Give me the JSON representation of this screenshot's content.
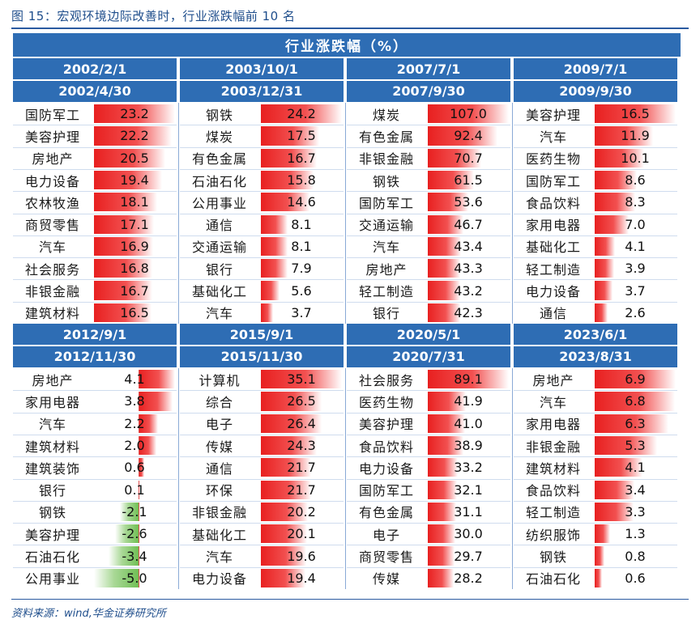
{
  "figure_title": "图 15：宏观环境边际改善时，行业涨跌幅前 10 名",
  "table_header": "行业涨跌幅（%）",
  "source": "资料来源：wind,华金证券研究所",
  "blocks": [
    {
      "periods": [
        {
          "start": "2002/2/1",
          "end": "2002/4/30",
          "rows": [
            {
              "name": "国防军工",
              "value": "23.2",
              "v": 23.2
            },
            {
              "name": "美容护理",
              "value": "22.2",
              "v": 22.2
            },
            {
              "name": "房地产",
              "value": "20.5",
              "v": 20.5
            },
            {
              "name": "电力设备",
              "value": "19.4",
              "v": 19.4
            },
            {
              "name": "农林牧渔",
              "value": "18.1",
              "v": 18.1
            },
            {
              "name": "商贸零售",
              "value": "17.1",
              "v": 17.1
            },
            {
              "name": "汽车",
              "value": "16.9",
              "v": 16.9
            },
            {
              "name": "社会服务",
              "value": "16.8",
              "v": 16.8
            },
            {
              "name": "非银金融",
              "value": "16.7",
              "v": 16.7
            },
            {
              "name": "建筑材料",
              "value": "16.5",
              "v": 16.5
            }
          ]
        },
        {
          "start": "2003/10/1",
          "end": "2003/12/31",
          "rows": [
            {
              "name": "钢铁",
              "value": "24.2",
              "v": 24.2
            },
            {
              "name": "煤炭",
              "value": "17.5",
              "v": 17.5
            },
            {
              "name": "有色金属",
              "value": "16.7",
              "v": 16.7
            },
            {
              "name": "石油石化",
              "value": "15.8",
              "v": 15.8
            },
            {
              "name": "公用事业",
              "value": "14.6",
              "v": 14.6
            },
            {
              "name": "通信",
              "value": "8.1",
              "v": 8.1
            },
            {
              "name": "交通运输",
              "value": "8.1",
              "v": 8.1
            },
            {
              "name": "银行",
              "value": "7.9",
              "v": 7.9
            },
            {
              "name": "基础化工",
              "value": "5.6",
              "v": 5.6
            },
            {
              "name": "汽车",
              "value": "3.7",
              "v": 3.7
            }
          ]
        },
        {
          "start": "2007/7/1",
          "end": "2007/9/30",
          "rows": [
            {
              "name": "煤炭",
              "value": "107.0",
              "v": 107.0
            },
            {
              "name": "有色金属",
              "value": "92.4",
              "v": 92.4
            },
            {
              "name": "非银金融",
              "value": "70.7",
              "v": 70.7
            },
            {
              "name": "钢铁",
              "value": "61.5",
              "v": 61.5
            },
            {
              "name": "国防军工",
              "value": "53.6",
              "v": 53.6
            },
            {
              "name": "交通运输",
              "value": "46.7",
              "v": 46.7
            },
            {
              "name": "汽车",
              "value": "43.4",
              "v": 43.4
            },
            {
              "name": "房地产",
              "value": "43.3",
              "v": 43.3
            },
            {
              "name": "轻工制造",
              "value": "43.2",
              "v": 43.2
            },
            {
              "name": "银行",
              "value": "42.3",
              "v": 42.3
            }
          ]
        },
        {
          "start": "2009/7/1",
          "end": "2009/9/30",
          "rows": [
            {
              "name": "美容护理",
              "value": "16.5",
              "v": 16.5
            },
            {
              "name": "汽车",
              "value": "11.9",
              "v": 11.9
            },
            {
              "name": "医药生物",
              "value": "10.1",
              "v": 10.1
            },
            {
              "name": "国防军工",
              "value": "8.6",
              "v": 8.6
            },
            {
              "name": "食品饮料",
              "value": "8.3",
              "v": 8.3
            },
            {
              "name": "家用电器",
              "value": "7.0",
              "v": 7.0
            },
            {
              "name": "基础化工",
              "value": "4.1",
              "v": 4.1
            },
            {
              "name": "轻工制造",
              "value": "3.9",
              "v": 3.9
            },
            {
              "name": "电力设备",
              "value": "3.7",
              "v": 3.7
            },
            {
              "name": "通信",
              "value": "2.6",
              "v": 2.6
            }
          ]
        }
      ]
    },
    {
      "periods": [
        {
          "start": "2012/9/1",
          "end": "2012/11/30",
          "has_negative": true,
          "rows": [
            {
              "name": "房地产",
              "value": "4.1",
              "v": 4.1
            },
            {
              "name": "家用电器",
              "value": "3.8",
              "v": 3.8
            },
            {
              "name": "汽车",
              "value": "2.2",
              "v": 2.2
            },
            {
              "name": "建筑材料",
              "value": "2.0",
              "v": 2.0
            },
            {
              "name": "建筑装饰",
              "value": "0.6",
              "v": 0.6
            },
            {
              "name": "银行",
              "value": "0.1",
              "v": 0.1
            },
            {
              "name": "钢铁",
              "value": "-2.1",
              "v": -2.1
            },
            {
              "name": "美容护理",
              "value": "-2.6",
              "v": -2.6
            },
            {
              "name": "石油石化",
              "value": "-3.4",
              "v": -3.4
            },
            {
              "name": "公用事业",
              "value": "-5.0",
              "v": -5.0
            }
          ]
        },
        {
          "start": "2015/9/1",
          "end": "2015/11/30",
          "rows": [
            {
              "name": "计算机",
              "value": "35.1",
              "v": 35.1
            },
            {
              "name": "综合",
              "value": "26.5",
              "v": 26.5
            },
            {
              "name": "电子",
              "value": "26.4",
              "v": 26.4
            },
            {
              "name": "传媒",
              "value": "24.3",
              "v": 24.3
            },
            {
              "name": "通信",
              "value": "21.7",
              "v": 21.7
            },
            {
              "name": "环保",
              "value": "21.7",
              "v": 21.7
            },
            {
              "name": "非银金融",
              "value": "20.2",
              "v": 20.2
            },
            {
              "name": "基础化工",
              "value": "20.1",
              "v": 20.1
            },
            {
              "name": "汽车",
              "value": "19.6",
              "v": 19.6
            },
            {
              "name": "电力设备",
              "value": "19.4",
              "v": 19.4
            }
          ]
        },
        {
          "start": "2020/5/1",
          "end": "2020/7/31",
          "rows": [
            {
              "name": "社会服务",
              "value": "89.1",
              "v": 89.1
            },
            {
              "name": "医药生物",
              "value": "41.9",
              "v": 41.9
            },
            {
              "name": "美容护理",
              "value": "41.0",
              "v": 41.0
            },
            {
              "name": "食品饮料",
              "value": "38.9",
              "v": 38.9
            },
            {
              "name": "电力设备",
              "value": "33.2",
              "v": 33.2
            },
            {
              "name": "国防军工",
              "value": "32.1",
              "v": 32.1
            },
            {
              "name": "有色金属",
              "value": "31.1",
              "v": 31.1
            },
            {
              "name": "电子",
              "value": "30.0",
              "v": 30.0
            },
            {
              "name": "商贸零售",
              "value": "29.7",
              "v": 29.7
            },
            {
              "name": "传媒",
              "value": "28.2",
              "v": 28.2
            }
          ]
        },
        {
          "start": "2023/6/1",
          "end": "2023/8/31",
          "rows": [
            {
              "name": "房地产",
              "value": "6.9",
              "v": 6.9
            },
            {
              "name": "汽车",
              "value": "6.8",
              "v": 6.8
            },
            {
              "name": "家用电器",
              "value": "6.3",
              "v": 6.3
            },
            {
              "name": "非银金融",
              "value": "5.3",
              "v": 5.3
            },
            {
              "name": "建筑材料",
              "value": "4.1",
              "v": 4.1
            },
            {
              "name": "食品饮料",
              "value": "3.4",
              "v": 3.4
            },
            {
              "name": "轻工制造",
              "value": "3.3",
              "v": 3.3
            },
            {
              "name": "纺织服饰",
              "value": "1.3",
              "v": 1.3
            },
            {
              "name": "钢铁",
              "value": "0.8",
              "v": 0.8
            },
            {
              "name": "石油石化",
              "value": "0.6",
              "v": 0.6
            }
          ]
        }
      ]
    }
  ],
  "colors": {
    "header": "#2e6db4",
    "positive_bar": "#e82020",
    "negative_bar": "#6fbf54"
  }
}
